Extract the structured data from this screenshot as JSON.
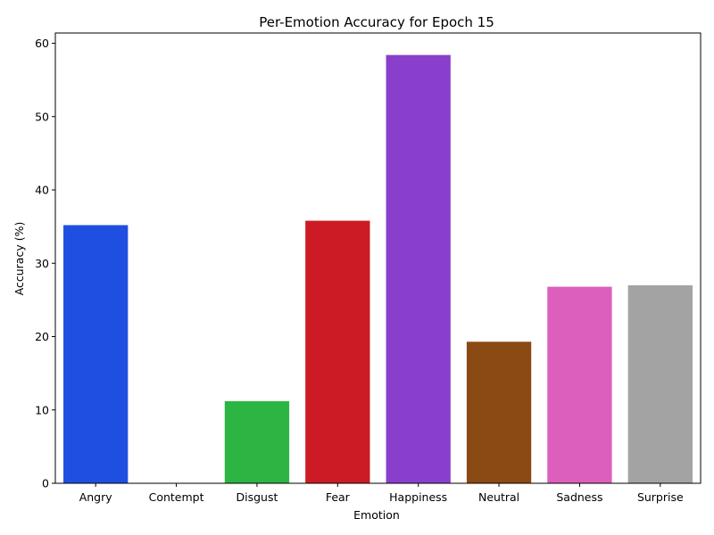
{
  "chart_data": {
    "type": "bar",
    "title": "Per-Emotion Accuracy for Epoch 15",
    "xlabel": "Emotion",
    "ylabel": "Accuracy (%)",
    "categories": [
      "Angry",
      "Contempt",
      "Disgust",
      "Fear",
      "Happiness",
      "Neutral",
      "Sadness",
      "Surprise"
    ],
    "values": [
      35.2,
      0,
      11.2,
      35.8,
      58.4,
      19.3,
      26.8,
      27.0
    ],
    "colors": [
      "#1f4fe0",
      "#ffffff",
      "#2db544",
      "#cc1b24",
      "#8a3fcc",
      "#8b4a13",
      "#dc5fbd",
      "#a3a3a3"
    ],
    "ylim": [
      0,
      61.4
    ],
    "yticks": [
      0,
      10,
      20,
      30,
      40,
      50,
      60
    ],
    "grid": false,
    "legend": "none"
  }
}
